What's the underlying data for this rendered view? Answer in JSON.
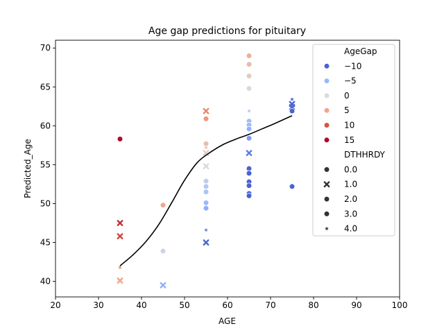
{
  "chart_data": {
    "type": "scatter",
    "title": "Age gap predictions for pituitary",
    "xlabel": "AGE",
    "ylabel": "Predicted_Age",
    "xlim": [
      20,
      100
    ],
    "ylim": [
      38,
      71
    ],
    "xticks": [
      "20",
      "30",
      "40",
      "50",
      "60",
      "70",
      "80",
      "90",
      "100"
    ],
    "yticks": [
      "40",
      "45",
      "50",
      "55",
      "60",
      "65",
      "70"
    ],
    "grid": false,
    "legend_position": "top-right",
    "legend": {
      "hue_title": "AgeGap",
      "hue_entries": [
        {
          "label": "−10",
          "color": "#4a62d3"
        },
        {
          "label": "−5",
          "color": "#98b9fe"
        },
        {
          "label": "0",
          "color": "#dadbdc"
        },
        {
          "label": "5",
          "color": "#f2a588"
        },
        {
          "label": "10",
          "color": "#d9533f"
        },
        {
          "label": "15",
          "color": "#b10a26"
        }
      ],
      "style_title": "DTHHRDY",
      "style_entries": [
        {
          "label": "0.0",
          "marker": "circle"
        },
        {
          "label": "1.0",
          "marker": "x"
        },
        {
          "label": "2.0",
          "marker": "circle"
        },
        {
          "label": "3.0",
          "marker": "circle"
        },
        {
          "label": "4.0",
          "marker": "star"
        }
      ]
    },
    "points": [
      {
        "x": 35,
        "y": 58.3,
        "gap": 23.3,
        "marker": "circle"
      },
      {
        "x": 35,
        "y": 47.5,
        "gap": 12.5,
        "marker": "x"
      },
      {
        "x": 35,
        "y": 45.8,
        "gap": 10.8,
        "marker": "x"
      },
      {
        "x": 35,
        "y": 40.1,
        "gap": 5.1,
        "marker": "x"
      },
      {
        "x": 35,
        "y": 41.8,
        "gap": 6.8,
        "marker": "star"
      },
      {
        "x": 45,
        "y": 49.8,
        "gap": 4.8,
        "marker": "circle"
      },
      {
        "x": 45,
        "y": 43.9,
        "gap": -1.1,
        "marker": "circle"
      },
      {
        "x": 45,
        "y": 39.5,
        "gap": -5.5,
        "marker": "x"
      },
      {
        "x": 55,
        "y": 61.9,
        "gap": 6.9,
        "marker": "x"
      },
      {
        "x": 55,
        "y": 60.9,
        "gap": 5.9,
        "marker": "circle"
      },
      {
        "x": 55,
        "y": 57.7,
        "gap": 2.7,
        "marker": "circle"
      },
      {
        "x": 55,
        "y": 57.2,
        "gap": 2.2,
        "marker": "star"
      },
      {
        "x": 55,
        "y": 56.5,
        "gap": 1.5,
        "marker": "x"
      },
      {
        "x": 55,
        "y": 54.8,
        "gap": -0.2,
        "marker": "x"
      },
      {
        "x": 55,
        "y": 52.9,
        "gap": -2.1,
        "marker": "circle"
      },
      {
        "x": 55,
        "y": 52.2,
        "gap": -2.8,
        "marker": "circle"
      },
      {
        "x": 55,
        "y": 51.5,
        "gap": -3.5,
        "marker": "circle"
      },
      {
        "x": 55,
        "y": 50.1,
        "gap": -4.9,
        "marker": "circle"
      },
      {
        "x": 55,
        "y": 49.4,
        "gap": -5.6,
        "marker": "circle"
      },
      {
        "x": 55,
        "y": 46.6,
        "gap": -8.4,
        "marker": "star"
      },
      {
        "x": 55,
        "y": 45.0,
        "gap": -10.0,
        "marker": "x"
      },
      {
        "x": 65,
        "y": 69.0,
        "gap": 4.0,
        "marker": "circle"
      },
      {
        "x": 65,
        "y": 67.9,
        "gap": 2.9,
        "marker": "circle"
      },
      {
        "x": 65,
        "y": 66.4,
        "gap": 1.4,
        "marker": "circle"
      },
      {
        "x": 65,
        "y": 64.8,
        "gap": -0.2,
        "marker": "circle"
      },
      {
        "x": 65,
        "y": 61.9,
        "gap": -3.1,
        "marker": "star"
      },
      {
        "x": 65,
        "y": 60.6,
        "gap": -4.4,
        "marker": "circle"
      },
      {
        "x": 65,
        "y": 60.1,
        "gap": -4.9,
        "marker": "circle"
      },
      {
        "x": 65,
        "y": 59.6,
        "gap": -5.4,
        "marker": "circle"
      },
      {
        "x": 65,
        "y": 58.4,
        "gap": -6.6,
        "marker": "circle"
      },
      {
        "x": 65,
        "y": 56.5,
        "gap": -8.5,
        "marker": "x"
      },
      {
        "x": 65,
        "y": 54.5,
        "gap": -10.5,
        "marker": "circle"
      },
      {
        "x": 65,
        "y": 53.9,
        "gap": -11.1,
        "marker": "circle"
      },
      {
        "x": 65,
        "y": 52.8,
        "gap": -12.2,
        "marker": "circle"
      },
      {
        "x": 65,
        "y": 52.3,
        "gap": -12.7,
        "marker": "circle"
      },
      {
        "x": 65,
        "y": 51.3,
        "gap": -13.7,
        "marker": "circle"
      },
      {
        "x": 65,
        "y": 51.0,
        "gap": -14.0,
        "marker": "circle"
      },
      {
        "x": 75,
        "y": 63.4,
        "gap": -11.6,
        "marker": "star"
      },
      {
        "x": 75,
        "y": 62.8,
        "gap": -12.2,
        "marker": "x"
      },
      {
        "x": 75,
        "y": 62.4,
        "gap": -12.6,
        "marker": "x"
      },
      {
        "x": 75,
        "y": 61.9,
        "gap": -13.1,
        "marker": "circle"
      },
      {
        "x": 75,
        "y": 52.2,
        "gap": -22.8,
        "marker": "circle"
      }
    ],
    "trend_line": {
      "x": [
        35,
        38,
        41,
        44,
        47,
        50,
        53,
        56,
        59,
        62,
        65,
        68,
        71,
        75
      ],
      "y": [
        42.0,
        43.4,
        45.1,
        47.3,
        50.1,
        53.0,
        55.3,
        56.6,
        57.6,
        58.3,
        58.9,
        59.6,
        60.3,
        61.3
      ]
    }
  }
}
